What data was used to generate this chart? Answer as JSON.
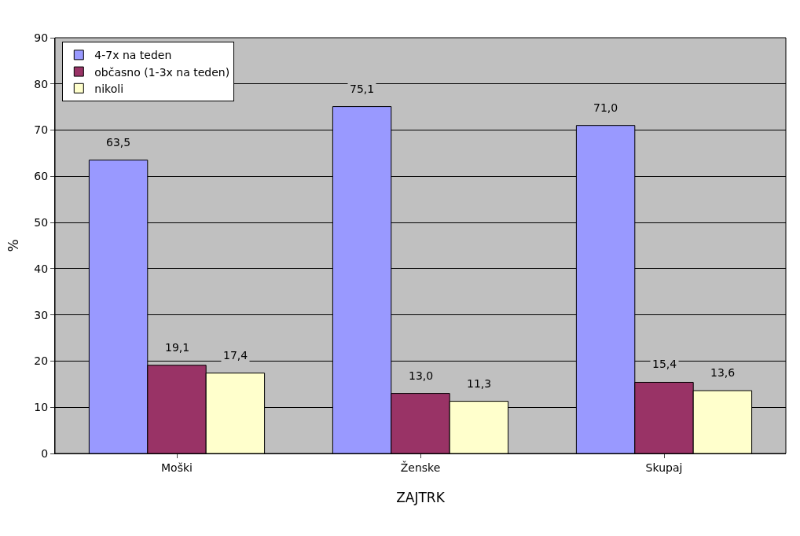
{
  "chart_data": {
    "type": "bar",
    "xlabel": "ZAJTRK",
    "ylabel": "%",
    "categories": [
      "Moški",
      "Ženske",
      "Skupaj"
    ],
    "series": [
      {
        "name": "4-7x na teden",
        "color": "#9999ff",
        "values": [
          63.5,
          75.1,
          71.0
        ],
        "value_labels": [
          "63,5",
          "75,1",
          "71,0"
        ]
      },
      {
        "name": "občasno (1-3x na teden)",
        "color": "#993366",
        "values": [
          19.1,
          13.0,
          15.4
        ],
        "value_labels": [
          "19,1",
          "13,0",
          "15,4"
        ]
      },
      {
        "name": "nikoli",
        "color": "#ffffcc",
        "values": [
          17.4,
          11.3,
          13.6
        ],
        "value_labels": [
          "17,4",
          "11,3",
          "13,6"
        ]
      }
    ],
    "ylim": [
      0,
      90
    ],
    "yticks": [
      0,
      10,
      20,
      30,
      40,
      50,
      60,
      70,
      80,
      90
    ],
    "grid": "y",
    "legend": "top left"
  }
}
